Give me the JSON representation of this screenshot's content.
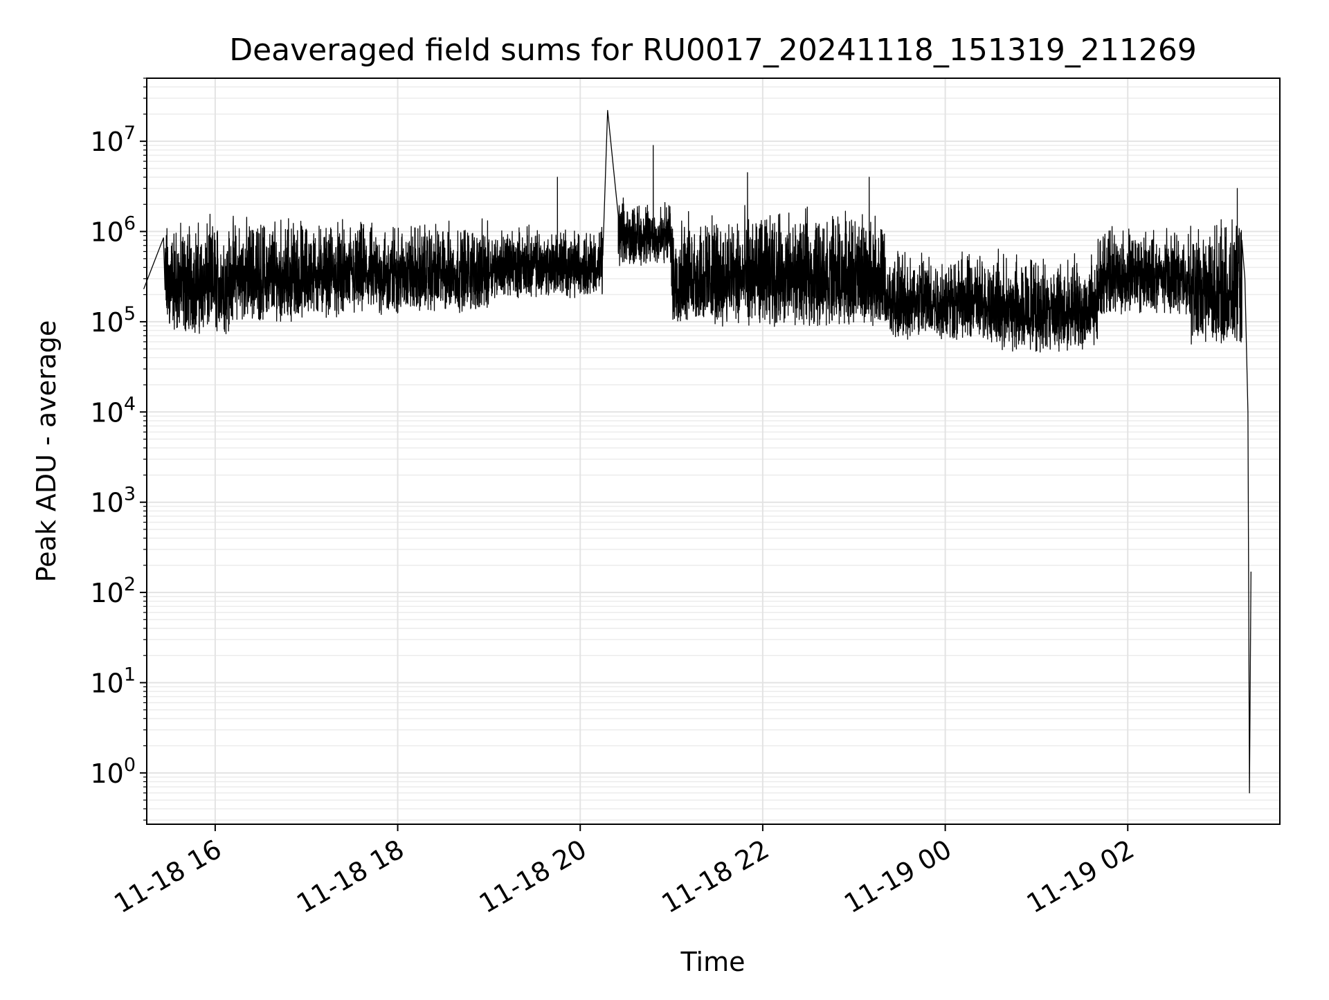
{
  "chart_data": {
    "type": "line",
    "title": "Deaveraged field sums for RU0017_20241118_151319_211269",
    "xlabel": "Time",
    "ylabel": "Peak ADU - average",
    "y_scale": "log",
    "ylim": [
      0.27,
      50000000
    ],
    "xlim": [
      "2024-11-18 15:15",
      "2024-11-19 03:40"
    ],
    "grid": "on (major and minor)",
    "x_tick_labels": [
      "11-18 16",
      "11-18 18",
      "11-18 20",
      "11-18 22",
      "11-19 00",
      "11-19 02"
    ],
    "x_tick_values": [
      "2024-11-18 16:00",
      "2024-11-18 18:00",
      "2024-11-18 20:00",
      "2024-11-18 22:00",
      "2024-11-19 00:00",
      "2024-11-19 02:00"
    ],
    "y_ticks": [
      {
        "value": 1,
        "base": "10",
        "exp": "0"
      },
      {
        "value": 10,
        "base": "10",
        "exp": "1"
      },
      {
        "value": 100,
        "base": "10",
        "exp": "2"
      },
      {
        "value": 1000,
        "base": "10",
        "exp": "3"
      },
      {
        "value": 10000,
        "base": "10",
        "exp": "4"
      },
      {
        "value": 100000,
        "base": "10",
        "exp": "5"
      },
      {
        "value": 1000000,
        "base": "10",
        "exp": "6"
      },
      {
        "value": 10000000,
        "base": "10",
        "exp": "7"
      }
    ],
    "series": [
      {
        "color": "#000000",
        "x": [
          "2024-11-18 15:13",
          "2024-11-18 15:26",
          "2024-11-18 15:27",
          "2024-11-18 15:30",
          "2024-11-18 15:35",
          "2024-11-18 15:45",
          "2024-11-18 16:00",
          "2024-11-18 16:30",
          "2024-11-18 17:00",
          "2024-11-18 17:30",
          "2024-11-18 18:00",
          "2024-11-18 18:30",
          "2024-11-18 19:00",
          "2024-11-18 19:30",
          "2024-11-18 20:00",
          "2024-11-18 20:15",
          "2024-11-18 20:18",
          "2024-11-18 20:25",
          "2024-11-18 20:40",
          "2024-11-18 20:50",
          "2024-11-18 21:00",
          "2024-11-18 21:20",
          "2024-11-18 21:40",
          "2024-11-18 22:00",
          "2024-11-18 22:30",
          "2024-11-18 23:00",
          "2024-11-18 23:20",
          "2024-11-18 23:40",
          "2024-11-19 00:00",
          "2024-11-19 00:30",
          "2024-11-19 01:00",
          "2024-11-19 01:20",
          "2024-11-19 01:40",
          "2024-11-19 02:00",
          "2024-11-19 02:30",
          "2024-11-19 02:50",
          "2024-11-19 03:05",
          "2024-11-19 03:10",
          "2024-11-19 03:15",
          "2024-11-19 03:17",
          "2024-11-19 03:19",
          "2024-11-19 03:20",
          "2024-11-19 03:21"
        ],
        "y": [
          230000,
          850000,
          40000,
          1500000,
          90000,
          100000,
          150000,
          250000,
          300000,
          400000,
          350000,
          500000,
          600000,
          500000,
          800000,
          700000,
          22000000,
          1500000,
          1000000,
          700000,
          400000,
          700000,
          300000,
          400000,
          300000,
          400000,
          150000,
          150000,
          100000,
          100000,
          80000,
          150000,
          300000,
          300000,
          400000,
          200000,
          300000,
          800000,
          800000,
          300000,
          10000,
          0.6,
          170
        ]
      }
    ],
    "noise_band": {
      "segments": [
        {
          "start": "2024-11-18 15:27",
          "end": "2024-11-18 16:10",
          "low": 40000,
          "high": 1700000
        },
        {
          "start": "2024-11-18 16:10",
          "end": "2024-11-18 17:00",
          "low": 60000,
          "high": 1700000
        },
        {
          "start": "2024-11-18 17:00",
          "end": "2024-11-18 18:00",
          "low": 70000,
          "high": 1500000
        },
        {
          "start": "2024-11-18 18:00",
          "end": "2024-11-18 19:00",
          "low": 80000,
          "high": 1500000
        },
        {
          "start": "2024-11-18 19:00",
          "end": "2024-11-18 20:15",
          "low": 130000,
          "high": 1300000
        },
        {
          "start": "2024-11-18 20:25",
          "end": "2024-11-18 21:00",
          "low": 300000,
          "high": 2500000
        },
        {
          "start": "2024-11-18 21:00",
          "end": "2024-11-18 22:00",
          "low": 50000,
          "high": 2000000
        },
        {
          "start": "2024-11-18 22:00",
          "end": "2024-11-18 23:20",
          "low": 50000,
          "high": 2000000
        },
        {
          "start": "2024-11-18 23:20",
          "end": "2024-11-19 00:30",
          "low": 40000,
          "high": 700000
        },
        {
          "start": "2024-11-19 00:30",
          "end": "2024-11-19 01:40",
          "low": 28000,
          "high": 650000
        },
        {
          "start": "2024-11-19 01:40",
          "end": "2024-11-19 02:40",
          "low": 80000,
          "high": 1200000
        },
        {
          "start": "2024-11-19 02:40",
          "end": "2024-11-19 03:15",
          "low": 30000,
          "high": 1500000
        }
      ],
      "spikes": [
        {
          "x": "2024-11-18 19:45",
          "y": 4000000
        },
        {
          "x": "2024-11-18 20:48",
          "y": 9000000
        },
        {
          "x": "2024-11-18 21:50",
          "y": 4500000
        },
        {
          "x": "2024-11-18 23:10",
          "y": 4000000
        },
        {
          "x": "2024-11-19 03:12",
          "y": 3000000
        }
      ]
    }
  }
}
